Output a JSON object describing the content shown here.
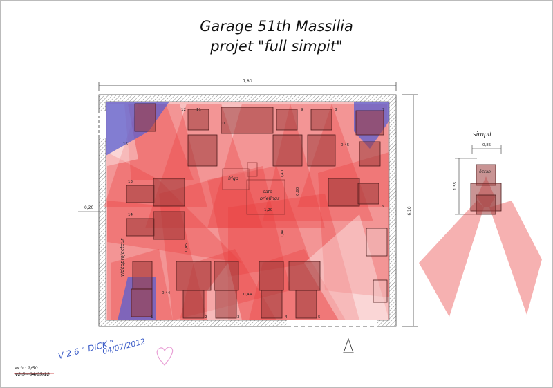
{
  "header": {
    "title_line1": "Garage 51th Massilia",
    "title_line2": "projet \"full simpit\""
  },
  "plan": {
    "width_dim": "7,80",
    "height_dim": "6,10",
    "wall_dim": "0,20",
    "dims": [
      "0,45",
      "0,40",
      "0,60",
      "1,20",
      "1,44",
      "0,45",
      "0,44",
      "0,44",
      "0,85",
      "1,55"
    ],
    "labels": {
      "frigo": "frigo",
      "cafe": "café",
      "briefings": "briefings",
      "videoprojecteur": "vidéoprojecteur",
      "simpit": "simpit",
      "ecran": "écran"
    },
    "seat_numbers": [
      "12",
      "11",
      "10",
      "9",
      "8",
      "7",
      "13",
      "14",
      "15",
      "1",
      "2",
      "3",
      "4",
      "5",
      "6"
    ]
  },
  "footer": {
    "scale": "ech : 1/50",
    "old_version": "v2.5 - 04/05/12",
    "handwritten_version": "V 2.6 \" DICK \"",
    "handwritten_date": "04/07/2012"
  },
  "colors": {
    "red_cone": "#e83b3b",
    "blue_cone": "#5a5fd0",
    "wall_hatch": "#777777",
    "desk": "#7a2a2a",
    "heart": "#e9a0d6",
    "pen": "#3a5bc7"
  }
}
